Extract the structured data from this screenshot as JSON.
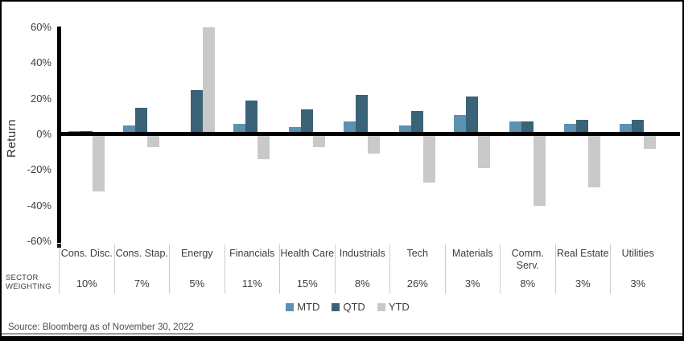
{
  "chart_data": {
    "type": "bar",
    "ylabel": "Return",
    "ylim": [
      -60,
      60
    ],
    "y_tick_step": 20,
    "y_ticks": [
      "60%",
      "40%",
      "20%",
      "0%",
      "-20%",
      "-40%",
      "-60%"
    ],
    "grid": "off",
    "legend_position": "bottom-center",
    "categories": [
      "Cons. Disc.",
      "Cons. Stap.",
      "Energy",
      "Financials",
      "Health Care",
      "Industrials",
      "Tech",
      "Materials",
      "Comm.\nServ.",
      "Real Estate",
      "Utilities"
    ],
    "series": [
      {
        "name": "MTD",
        "color": "#5b91b1",
        "values": [
          2,
          5,
          0,
          6,
          4,
          7,
          5,
          11,
          7,
          6,
          6
        ]
      },
      {
        "name": "QTD",
        "color": "#3a6378",
        "values": [
          2,
          15,
          25,
          19,
          14,
          22,
          13,
          21,
          7,
          8,
          8
        ]
      },
      {
        "name": "YTD",
        "color": "#c9c9c9",
        "values": [
          -32,
          -7,
          60,
          -14,
          -7,
          -11,
          -27,
          -19,
          -40,
          -30,
          -8
        ]
      }
    ]
  },
  "weighting_table": {
    "header": [
      "SECTOR",
      "WEIGHTING"
    ],
    "values": [
      "10%",
      "7%",
      "5%",
      "11%",
      "15%",
      "8%",
      "26%",
      "3%",
      "8%",
      "3%",
      "3%"
    ]
  },
  "footer": {
    "source_text": "Source: Bloomberg as of November 30, 2022"
  }
}
